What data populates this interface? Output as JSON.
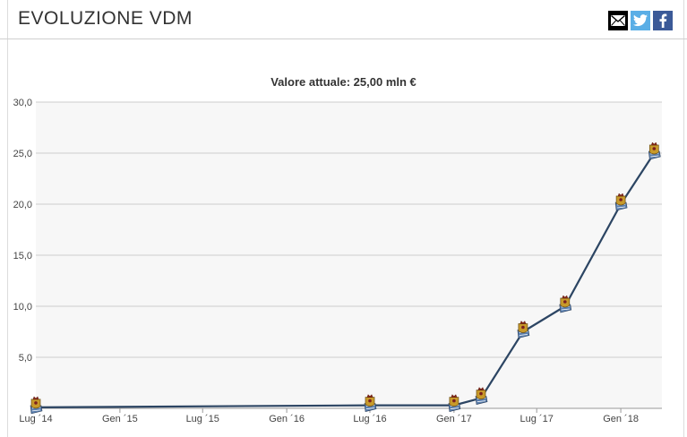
{
  "header": {
    "title": "EVOLUZIONE VDM",
    "share_icons": [
      "email-icon",
      "twitter-icon",
      "facebook-icon"
    ]
  },
  "colors": {
    "line": "#2c4563",
    "plot_background": "#f7f7f7",
    "grid": "#cccccc",
    "marker_gold": "#c89a2a",
    "marker_blue": "#5b7fae"
  },
  "chart_data": {
    "type": "line",
    "title": "Valore attuale: 25,00 mln €",
    "xlabel": "",
    "ylabel": "",
    "ylim": [
      0,
      30
    ],
    "yticks": [
      "5,0",
      "10,0",
      "15,0",
      "20,0",
      "25,0",
      "30,0"
    ],
    "xticks": [
      "Lug ´14",
      "Gen ´15",
      "Lug ´15",
      "Gen ´16",
      "Lug ´16",
      "Gen ´17",
      "Lug ´17",
      "Gen ´18"
    ],
    "xtick_dates": [
      "2014-07-01",
      "2015-01-01",
      "2015-07-01",
      "2016-01-01",
      "2016-07-01",
      "2017-01-01",
      "2017-07-01",
      "2018-01-01"
    ],
    "xlim": [
      "2014-07-01",
      "2018-04-01"
    ],
    "grid": true,
    "marker": "club-crest",
    "points": [
      {
        "date": "2014-07-01",
        "value": 0.1
      },
      {
        "date": "2016-07-01",
        "value": 0.3
      },
      {
        "date": "2017-01-01",
        "value": 0.3
      },
      {
        "date": "2017-03-01",
        "value": 1.0
      },
      {
        "date": "2017-06-01",
        "value": 7.5
      },
      {
        "date": "2017-09-01",
        "value": 10.0
      },
      {
        "date": "2018-01-01",
        "value": 20.0
      },
      {
        "date": "2018-03-15",
        "value": 25.0
      }
    ]
  }
}
